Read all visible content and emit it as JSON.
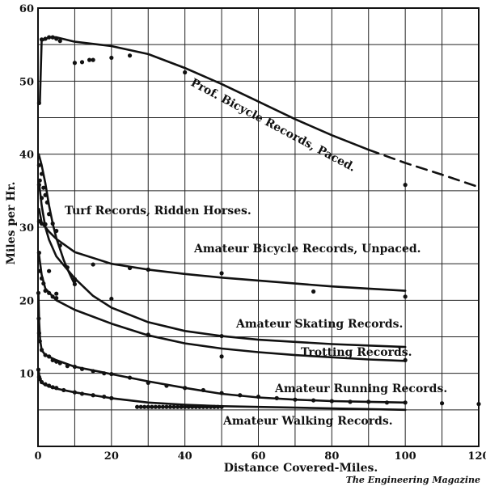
{
  "chart_data": {
    "type": "line",
    "title": "",
    "xlabel": "Distance Covered-Miles.",
    "ylabel": "Miles per Hr.",
    "xlim": [
      0,
      120
    ],
    "ylim": [
      0,
      60
    ],
    "xticks": [
      0,
      20,
      40,
      60,
      80,
      100,
      120
    ],
    "yticks": [
      10,
      20,
      30,
      40,
      50,
      60
    ],
    "xtick_labels": [
      "0",
      "20",
      "40",
      "60",
      "80",
      "100",
      "120"
    ],
    "ytick_labels": [
      "10",
      "20",
      "30",
      "40",
      "50",
      "60"
    ],
    "grid": true,
    "credit": "The Engineering Magazine",
    "series": [
      {
        "name": "Prof. Bicycle Records, Paced.",
        "curve": [
          [
            0.5,
            47
          ],
          [
            1,
            55.5
          ],
          [
            3,
            56
          ],
          [
            5,
            56
          ],
          [
            10,
            55.4
          ],
          [
            20,
            54.8
          ],
          [
            30,
            53.7
          ],
          [
            40,
            51.8
          ],
          [
            50,
            49.6
          ],
          [
            60,
            47.2
          ],
          [
            70,
            44.8
          ],
          [
            80,
            42.6
          ],
          [
            90,
            40.6
          ]
        ],
        "extrapolated": [
          [
            90,
            40.6
          ],
          [
            100,
            38.8
          ],
          [
            110,
            37.2
          ],
          [
            120,
            35.5
          ]
        ],
        "points": [
          [
            0.3,
            47
          ],
          [
            1,
            55.7
          ],
          [
            2,
            55.8
          ],
          [
            3,
            56
          ],
          [
            4,
            56
          ],
          [
            5,
            55.8
          ],
          [
            6,
            55.5
          ],
          [
            10,
            52.5
          ],
          [
            12,
            52.6
          ],
          [
            14,
            52.9
          ],
          [
            15,
            52.9
          ],
          [
            20,
            53.2
          ],
          [
            25,
            53.5
          ],
          [
            40,
            51.2
          ],
          [
            100,
            35.8
          ]
        ]
      },
      {
        "name": "Turf Records, Ridden Horses.",
        "curve": [
          [
            0.2,
            40
          ],
          [
            1,
            38.5
          ],
          [
            2,
            36
          ],
          [
            3,
            33
          ],
          [
            4,
            30.5
          ],
          [
            5,
            28.5
          ],
          [
            6,
            27
          ],
          [
            7,
            25.5
          ],
          [
            8,
            24.3
          ],
          [
            9,
            23.2
          ],
          [
            10,
            22.2
          ]
        ],
        "points": [
          [
            0.3,
            38.5
          ],
          [
            0.5,
            36.4
          ],
          [
            1,
            37.3
          ],
          [
            1.5,
            35.4
          ],
          [
            2,
            34.4
          ],
          [
            2.5,
            33.4
          ],
          [
            3,
            31.8
          ],
          [
            4,
            30.5
          ],
          [
            5,
            29.5
          ],
          [
            6,
            27.5
          ],
          [
            8,
            24.5
          ],
          [
            10,
            22.7
          ],
          [
            10,
            22.2
          ]
        ]
      },
      {
        "name": "Amateur Bicycle Records, Unpaced.",
        "curve": [
          [
            0.3,
            32.5
          ],
          [
            1,
            30.6
          ],
          [
            3,
            29.4
          ],
          [
            5,
            28.4
          ],
          [
            10,
            26.6
          ],
          [
            20,
            25
          ],
          [
            30,
            24.2
          ],
          [
            40,
            23.6
          ],
          [
            50,
            23.1
          ],
          [
            60,
            22.7
          ],
          [
            70,
            22.3
          ],
          [
            80,
            21.9
          ],
          [
            90,
            21.6
          ],
          [
            100,
            21.3
          ]
        ],
        "points": [
          [
            0.3,
            30.8
          ],
          [
            1,
            30.5
          ],
          [
            15,
            24.9
          ],
          [
            25,
            24.4
          ],
          [
            30,
            24.2
          ],
          [
            50,
            23.7
          ],
          [
            75,
            21.2
          ],
          [
            100,
            20.5
          ]
        ]
      },
      {
        "name": "Amateur Skating Records.",
        "curve": [
          [
            0.3,
            36
          ],
          [
            1,
            33
          ],
          [
            2,
            30
          ],
          [
            3,
            28.3
          ],
          [
            5,
            26
          ],
          [
            10,
            23
          ],
          [
            15,
            20.6
          ],
          [
            20,
            19
          ],
          [
            30,
            17
          ],
          [
            40,
            15.8
          ],
          [
            50,
            15.1
          ],
          [
            60,
            14.6
          ],
          [
            70,
            14.3
          ],
          [
            80,
            14
          ],
          [
            90,
            13.8
          ],
          [
            100,
            13.6
          ]
        ],
        "points": [
          [
            0.3,
            35.8
          ],
          [
            1,
            34
          ],
          [
            2,
            30.4
          ],
          [
            3,
            24
          ],
          [
            5,
            20.9
          ],
          [
            10,
            22.9
          ],
          [
            20,
            20.2
          ],
          [
            30,
            15.3
          ],
          [
            50,
            15.1
          ],
          [
            50,
            12.3
          ]
        ]
      },
      {
        "name": "Trotting Records.",
        "curve": [
          [
            0.2,
            26.5
          ],
          [
            1,
            23.5
          ],
          [
            2,
            21.6
          ],
          [
            5,
            20
          ],
          [
            10,
            18.7
          ],
          [
            20,
            16.8
          ],
          [
            30,
            15.2
          ],
          [
            40,
            14.1
          ],
          [
            50,
            13.4
          ],
          [
            60,
            12.9
          ],
          [
            70,
            12.5
          ],
          [
            80,
            12.2
          ],
          [
            90,
            11.9
          ],
          [
            100,
            11.7
          ]
        ],
        "points": [
          [
            0.3,
            26.5
          ],
          [
            0.5,
            24
          ],
          [
            1,
            23
          ],
          [
            1.5,
            22.3
          ],
          [
            2,
            21.3
          ],
          [
            3,
            21
          ],
          [
            4,
            20.5
          ],
          [
            5,
            20.3
          ],
          [
            100,
            11.8
          ]
        ]
      },
      {
        "name": "Amateur Running Records.",
        "curve": [
          [
            0.1,
            21
          ],
          [
            0.3,
            17
          ],
          [
            0.6,
            14.5
          ],
          [
            1,
            13.2
          ],
          [
            2,
            12.5
          ],
          [
            5,
            11.8
          ],
          [
            10,
            10.9
          ],
          [
            20,
            9.9
          ],
          [
            30,
            8.9
          ],
          [
            40,
            8
          ],
          [
            50,
            7.2
          ],
          [
            60,
            6.7
          ],
          [
            70,
            6.4
          ],
          [
            80,
            6.2
          ],
          [
            90,
            6.1
          ],
          [
            100,
            6
          ]
        ],
        "points": [
          [
            0.1,
            21
          ],
          [
            0.2,
            17.5
          ],
          [
            0.3,
            15.5
          ],
          [
            0.5,
            14.4
          ],
          [
            1,
            13.2
          ],
          [
            2,
            12.5
          ],
          [
            3,
            12.3
          ],
          [
            4,
            11.8
          ],
          [
            5,
            11.6
          ],
          [
            6,
            11.4
          ],
          [
            8,
            11
          ],
          [
            10,
            10.9
          ],
          [
            12,
            10.6
          ],
          [
            15,
            10.3
          ],
          [
            18,
            10
          ],
          [
            20,
            9.9
          ],
          [
            25,
            9.4
          ],
          [
            30,
            8.7
          ],
          [
            35,
            8.3
          ],
          [
            40,
            8
          ],
          [
            45,
            7.7
          ],
          [
            50,
            7.3
          ],
          [
            55,
            7
          ],
          [
            60,
            6.8
          ],
          [
            65,
            6.6
          ],
          [
            70,
            6.4
          ],
          [
            75,
            6.3
          ],
          [
            80,
            6.2
          ],
          [
            85,
            6.1
          ],
          [
            90,
            6.1
          ],
          [
            95,
            6
          ],
          [
            100,
            6
          ],
          [
            110,
            5.9
          ],
          [
            120,
            5.8
          ]
        ]
      },
      {
        "name": "Amateur Walking Records.",
        "curve": [
          [
            0.1,
            10.5
          ],
          [
            0.5,
            9.2
          ],
          [
            1,
            8.7
          ],
          [
            3,
            8.2
          ],
          [
            5,
            7.9
          ],
          [
            10,
            7.4
          ],
          [
            20,
            6.6
          ],
          [
            30,
            6
          ],
          [
            40,
            5.7
          ],
          [
            50,
            5.5
          ],
          [
            60,
            5.4
          ],
          [
            70,
            5.3
          ],
          [
            80,
            5.2
          ],
          [
            90,
            5.1
          ],
          [
            100,
            5
          ]
        ],
        "points": [
          [
            0.1,
            10.5
          ],
          [
            0.3,
            9.5
          ],
          [
            0.5,
            9.2
          ],
          [
            1,
            8.8
          ],
          [
            2,
            8.5
          ],
          [
            3,
            8.3
          ],
          [
            4,
            8.1
          ],
          [
            5,
            8
          ],
          [
            7,
            7.7
          ],
          [
            10,
            7.4
          ],
          [
            12,
            7.2
          ],
          [
            15,
            7
          ],
          [
            18,
            6.8
          ],
          [
            20,
            6.6
          ],
          [
            27,
            5.4
          ],
          [
            28,
            5.4
          ],
          [
            29,
            5.4
          ],
          [
            30,
            5.4
          ],
          [
            31,
            5.4
          ],
          [
            32,
            5.4
          ],
          [
            33,
            5.4
          ],
          [
            34,
            5.4
          ],
          [
            35,
            5.4
          ],
          [
            36,
            5.4
          ],
          [
            37,
            5.4
          ],
          [
            38,
            5.4
          ],
          [
            39,
            5.4
          ],
          [
            40,
            5.4
          ],
          [
            41,
            5.4
          ],
          [
            42,
            5.4
          ],
          [
            43,
            5.4
          ],
          [
            44,
            5.4
          ],
          [
            45,
            5.4
          ],
          [
            46,
            5.4
          ],
          [
            47,
            5.4
          ],
          [
            48,
            5.4
          ],
          [
            49,
            5.4
          ],
          [
            50,
            5.4
          ]
        ]
      }
    ]
  }
}
